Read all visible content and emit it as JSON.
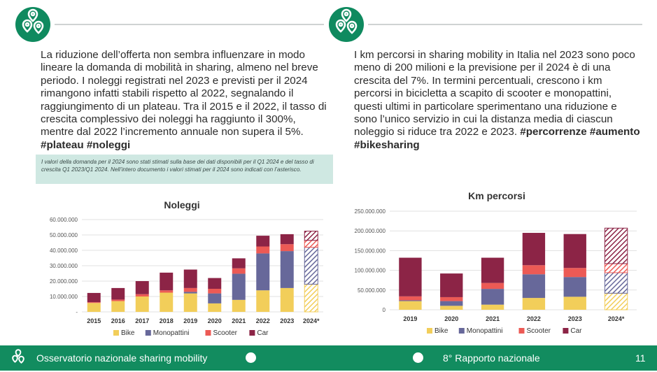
{
  "left_text": {
    "paragraph": "La riduzione dell’offerta non sembra influenzare in modo lineare la domanda di mobilità in sharing, almeno nel breve periodo. I noleggi registrati nel 2023 e previsti per il 2024 rimangono infatti stabili rispetto al 2022, segnalando il raggiungimento di un plateau. Tra il 2015 e il 2022, il tasso di crescita complessivo dei noleggi ha raggiunto il 300%, mentre dal 2022 l’incremento annuale non supera il 5%.",
    "hashtags": "#plateau #noleggi"
  },
  "right_text": {
    "paragraph": "I km percorsi in sharing mobility in Italia nel 2023 sono poco meno di 200 milioni e la previsione per il 2024 è di una crescita del 7%. In termini percentuali, crescono i km percorsi in bicicletta a scapito di scooter e monopattini, questi ultimi in particolare sperimentano una riduzione e sono l’unico servizio in cui la distanza media di ciascun noleggio si riduce tra 2022 e 2023.",
    "hashtags": "#percorrenze #aumento #bikesharing"
  },
  "note": "I valori della domanda per il 2024 sono stati stimati sulla base dei dati disponibili per il Q1 2024 e del tasso di crescita Q1 2023/Q1 2024. Nell’intero documento i valori stimati per il 2024 sono indicati con l’asterisco.",
  "colors": {
    "Bike": "#f2ce5a",
    "Monopattini": "#67689a",
    "Scooter": "#ec5a55",
    "Car": "#8c2446",
    "brand": "#128c5f"
  },
  "chart_data": [
    {
      "type": "bar",
      "stacked": true,
      "title": "Noleggi",
      "categories": [
        "2015",
        "2016",
        "2017",
        "2018",
        "2019",
        "2020",
        "2021",
        "2022",
        "2023",
        "2024*"
      ],
      "estimated_categories": [
        "2024*"
      ],
      "yticks": [
        "-",
        "10.000.000",
        "20.000.000",
        "30.000.000",
        "40.000.000",
        "50.000.000",
        "60.000.000"
      ],
      "ylim": [
        0,
        60000000
      ],
      "grid": true,
      "legend_position": "bottom",
      "series": [
        {
          "name": "Bike",
          "values": [
            5800000,
            7000000,
            10000000,
            12500000,
            12000000,
            5500000,
            7800000,
            14000000,
            15500000,
            18000000
          ]
        },
        {
          "name": "Monopattini",
          "values": [
            0,
            0,
            0,
            0,
            1000000,
            6500000,
            17000000,
            24000000,
            24000000,
            24000000
          ]
        },
        {
          "name": "Scooter",
          "values": [
            500000,
            1000000,
            1500000,
            1500000,
            2500000,
            3000000,
            3500000,
            4500000,
            4500000,
            4500000
          ]
        },
        {
          "name": "Car",
          "values": [
            6000000,
            7500000,
            8500000,
            11500000,
            12000000,
            7000000,
            6500000,
            7000000,
            6500000,
            6000000
          ]
        }
      ]
    },
    {
      "type": "bar",
      "stacked": true,
      "title": "Km percorsi",
      "categories": [
        "2019",
        "2020",
        "2021",
        "2022",
        "2023",
        "2024*"
      ],
      "estimated_categories": [
        "2024*"
      ],
      "yticks": [
        "0",
        "50.000.000",
        "100.000.000",
        "150.000.000",
        "200.000.000",
        "250.000.000"
      ],
      "ylim": [
        0,
        250000000
      ],
      "grid": true,
      "legend_position": "bottom",
      "series": [
        {
          "name": "Bike",
          "values": [
            22000000,
            10000000,
            13000000,
            30000000,
            33000000,
            42000000
          ]
        },
        {
          "name": "Monopattini",
          "values": [
            2000000,
            12000000,
            40000000,
            60000000,
            50000000,
            52000000
          ]
        },
        {
          "name": "Scooter",
          "values": [
            10000000,
            10000000,
            15000000,
            23000000,
            23000000,
            23000000
          ]
        },
        {
          "name": "Car",
          "values": [
            98000000,
            60000000,
            64000000,
            82000000,
            86000000,
            90000000
          ]
        }
      ]
    }
  ],
  "footer": {
    "left_label": "Osservatorio nazionale sharing mobility",
    "center_label": "8° Rapporto nazionale",
    "page_number": "11"
  }
}
